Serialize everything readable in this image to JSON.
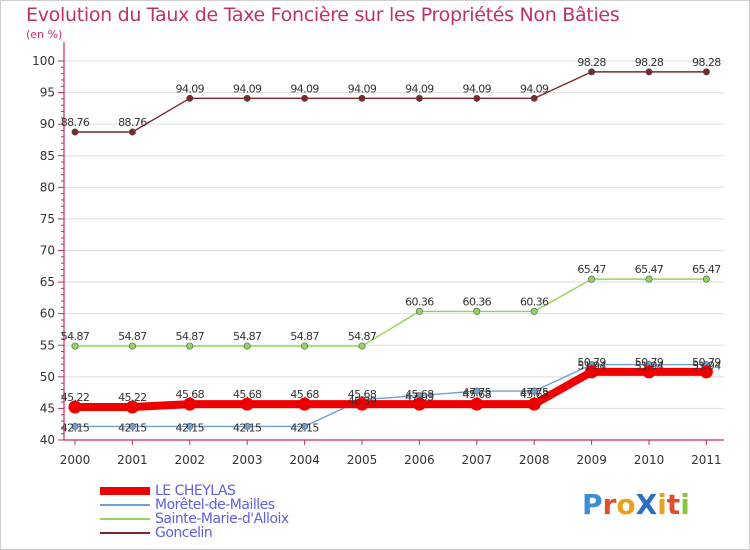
{
  "title": "Evolution du Taux de Taxe Foncière sur les Propriétés Non Bâties",
  "subtitle": "(en %)",
  "logo": {
    "text": "ProXiti",
    "letters": [
      "P",
      "r",
      "o",
      "X",
      "i",
      "t",
      "i"
    ],
    "colors": [
      "#3a8fd6",
      "#e05030",
      "#e8a020",
      "#2a6fc0",
      "#e8a020",
      "#e05030",
      "#8cc63f"
    ]
  },
  "chart_data": {
    "type": "line",
    "title": "Evolution du Taux de Taxe Foncière sur les Propriétés Non Bâties",
    "ylabel": "(en %)",
    "xlabel": "",
    "ylim": [
      40,
      100
    ],
    "yticks": [
      "40",
      "45",
      "50",
      "55",
      "60",
      "65",
      "70",
      "75",
      "80",
      "85",
      "90",
      "95",
      "100"
    ],
    "categories": [
      "2000",
      "2001",
      "2002",
      "2003",
      "2004",
      "2005",
      "2006",
      "2007",
      "2008",
      "2009",
      "2010",
      "2011"
    ],
    "series": [
      {
        "name": "Goncelin",
        "color": "#7a2a2a",
        "values": [
          88.76,
          88.76,
          94.09,
          94.09,
          94.09,
          94.09,
          94.09,
          94.09,
          94.09,
          98.28,
          98.28,
          98.28
        ],
        "labels": [
          "88.76",
          "88.76",
          "94.09",
          "94.09",
          "94.09",
          "94.09",
          "94.09",
          "94.09",
          "94.09",
          "98.28",
          "98.28",
          "98.28"
        ]
      },
      {
        "name": "Sainte-Marie-d'Alloix",
        "color": "#8fd65a",
        "values": [
          54.87,
          54.87,
          54.87,
          54.87,
          54.87,
          54.87,
          60.36,
          60.36,
          60.36,
          65.47,
          65.47,
          65.47
        ],
        "labels": [
          "54.87",
          "54.87",
          "54.87",
          "54.87",
          "54.87",
          "54.87",
          "60.36",
          "60.36",
          "60.36",
          "65.47",
          "65.47",
          "65.47"
        ]
      },
      {
        "name": "Morêtel-de-Mailles",
        "color": "#6fa0d0",
        "values": [
          42.15,
          42.15,
          42.15,
          42.15,
          42.15,
          46.39,
          47.03,
          47.75,
          47.75,
          51.94,
          51.94,
          51.94
        ],
        "labels": [
          "42.15",
          "42.15",
          "42.15",
          "42.15",
          "42.15",
          "46.39",
          "47.03",
          "47.75",
          "47.75",
          "51.94",
          "51.94",
          "51.94"
        ]
      },
      {
        "name": "LE CHEYLAS",
        "color": "#ee0000",
        "values": [
          45.22,
          45.22,
          45.68,
          45.68,
          45.68,
          45.68,
          45.68,
          45.68,
          45.68,
          50.79,
          50.79,
          50.79
        ],
        "labels": [
          "45.22",
          "45.22",
          "45.68",
          "45.68",
          "45.68",
          "45.68",
          "45.68",
          "45.68",
          "45.68",
          "50.79",
          "50.79",
          "50.79"
        ]
      }
    ],
    "legend": [
      {
        "name": "LE CHEYLAS",
        "color": "#ee0000"
      },
      {
        "name": "Morêtel-de-Mailles",
        "color": "#6fa0d0"
      },
      {
        "name": "Sainte-Marie-d'Alloix",
        "color": "#8fd65a"
      },
      {
        "name": "Goncelin",
        "color": "#7a2a2a"
      }
    ],
    "legend_position": "bottom-left"
  }
}
